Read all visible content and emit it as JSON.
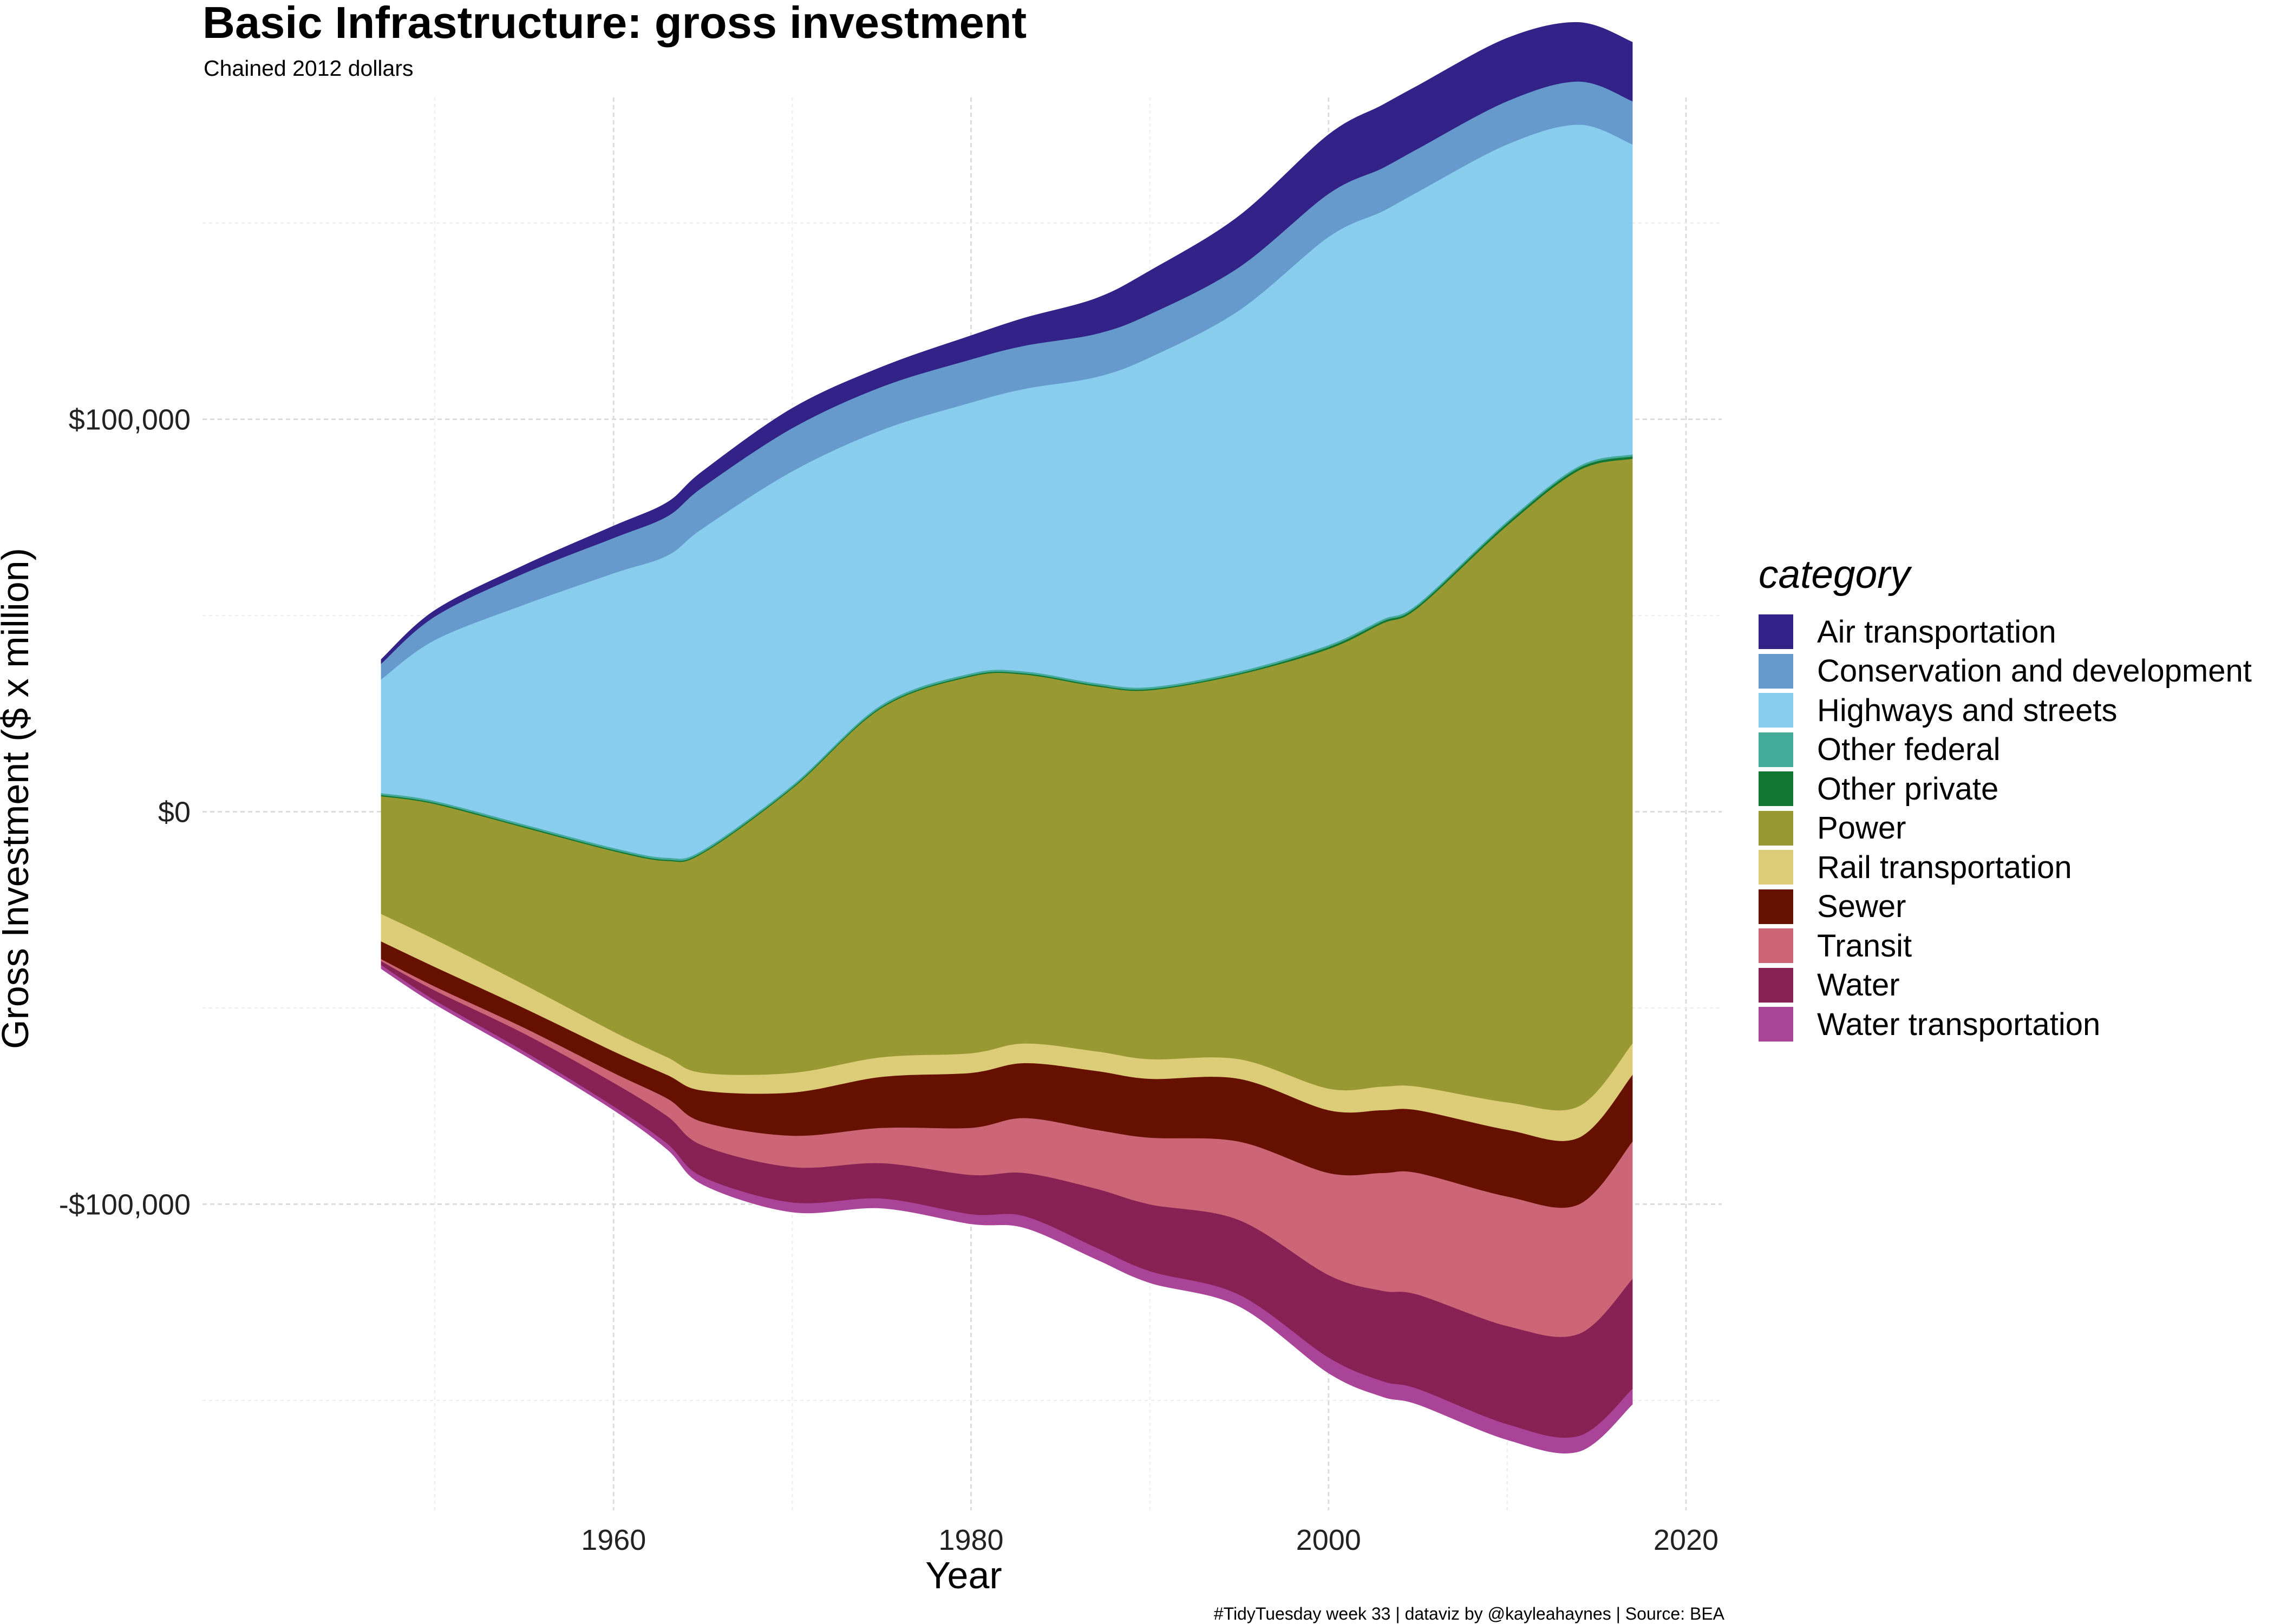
{
  "title": "Basic Infrastructure: gross investment",
  "subtitle": "Chained 2012 dollars",
  "caption": "#TidyTuesday week 33 | dataviz by @kayleahaynes | Source: BEA",
  "chart_data": {
    "type": "area",
    "subtype": "streamgraph",
    "xlabel": "Year",
    "ylabel": "Gross Investment ($ x million)",
    "xlim": [
      1937,
      2022
    ],
    "ylim": [
      -178000,
      182000
    ],
    "x_ticks": [
      1960,
      1980,
      2000,
      2020
    ],
    "x_tick_labels": [
      "1960",
      "1980",
      "2000",
      "2020"
    ],
    "y_ticks": [
      100000,
      0,
      -100000
    ],
    "y_tick_labels": [
      "$100,000",
      "$0",
      "-$100,000"
    ],
    "y_minor_ticks": [
      150000,
      50000,
      -50000,
      -150000
    ],
    "grid": true,
    "legend_title": "category",
    "legend_position": "right",
    "x": [
      1947,
      1950,
      1955,
      1960,
      1963,
      1965,
      1970,
      1975,
      1980,
      1983,
      1987,
      1990,
      1995,
      2000,
      2003,
      2005,
      2010,
      2014,
      2017
    ],
    "baseline": [
      -40000,
      -49000,
      -62000,
      -76000,
      -86000,
      -95000,
      -102000,
      -101000,
      -105000,
      -106000,
      -114000,
      -120000,
      -126000,
      -143000,
      -149000,
      -151000,
      -160000,
      -163000,
      -151000
    ],
    "series": [
      {
        "name": "Water transportation",
        "values": [
          1000,
          1000,
          1000,
          1000,
          1500,
          2000,
          2500,
          2500,
          2500,
          3000,
          3000,
          3000,
          3000,
          4000,
          4000,
          4000,
          4000,
          4000,
          4000
        ]
      },
      {
        "name": "Water",
        "values": [
          1000,
          2500,
          4500,
          6000,
          7000,
          8000,
          9000,
          9000,
          10000,
          11000,
          15000,
          17000,
          19000,
          21000,
          23000,
          24000,
          25000,
          26000,
          28000
        ]
      },
      {
        "name": "Transit",
        "values": [
          500,
          1000,
          1500,
          2500,
          4500,
          6000,
          8000,
          9000,
          12000,
          14000,
          15000,
          17000,
          20000,
          26000,
          30000,
          31000,
          33000,
          33000,
          35000
        ]
      },
      {
        "name": "Sewer",
        "values": [
          4500,
          5000,
          5000,
          5500,
          6000,
          8000,
          11000,
          13000,
          14000,
          14000,
          15000,
          15000,
          16000,
          16000,
          16000,
          16000,
          17000,
          17000,
          17000
        ]
      },
      {
        "name": "Rail transportation",
        "values": [
          7000,
          7000,
          6000,
          5000,
          4500,
          4500,
          5000,
          5000,
          5000,
          5000,
          5000,
          5000,
          5000,
          5500,
          6000,
          6000,
          7000,
          8000,
          8000
        ]
      },
      {
        "name": "Power",
        "values": [
          30000,
          34500,
          40000,
          46000,
          50000,
          56000,
          72500,
          89000,
          96000,
          94000,
          93000,
          94000,
          98000,
          112000,
          118000,
          122000,
          147000,
          162000,
          149000
        ]
      },
      {
        "name": "Other private",
        "values": [
          300,
          300,
          300,
          300,
          300,
          300,
          300,
          300,
          300,
          300,
          300,
          300,
          300,
          500,
          500,
          500,
          600,
          600,
          600
        ]
      },
      {
        "name": "Other federal",
        "values": [
          500,
          500,
          500,
          500,
          500,
          500,
          500,
          500,
          500,
          500,
          500,
          500,
          500,
          500,
          500,
          500,
          500,
          500,
          500
        ]
      },
      {
        "name": "Highways and streets",
        "values": [
          29000,
          41000,
          56000,
          70000,
          77000,
          82000,
          80000,
          70000,
          69000,
          72000,
          78000,
          84000,
          92000,
          104000,
          104000,
          105000,
          96000,
          87000,
          79000
        ]
      },
      {
        "name": "Conservation and development",
        "values": [
          4000,
          6000,
          8000,
          9000,
          10000,
          10500,
          11000,
          11000,
          11000,
          11000,
          11000,
          11000,
          11000,
          11000,
          11000,
          11000,
          11000,
          11000,
          11000
        ]
      },
      {
        "name": "Air transportation",
        "values": [
          1000,
          1500,
          2000,
          3000,
          3500,
          4000,
          5000,
          5000,
          6000,
          7000,
          9000,
          11000,
          13000,
          15000,
          16000,
          16000,
          16000,
          15000,
          15000
        ]
      }
    ],
    "legend_order": [
      "Air transportation",
      "Conservation and development",
      "Highways and streets",
      "Other federal",
      "Other private",
      "Power",
      "Rail transportation",
      "Sewer",
      "Transit",
      "Water",
      "Water transportation"
    ],
    "colors": {
      "Air transportation": "#332288",
      "Conservation and development": "#6699CC",
      "Highways and streets": "#88CCEE",
      "Other federal": "#44AA99",
      "Other private": "#117733",
      "Power": "#999933",
      "Rail transportation": "#DDCC77",
      "Sewer": "#661100",
      "Transit": "#CC6677",
      "Water": "#882255",
      "Water transportation": "#AA4499"
    }
  }
}
